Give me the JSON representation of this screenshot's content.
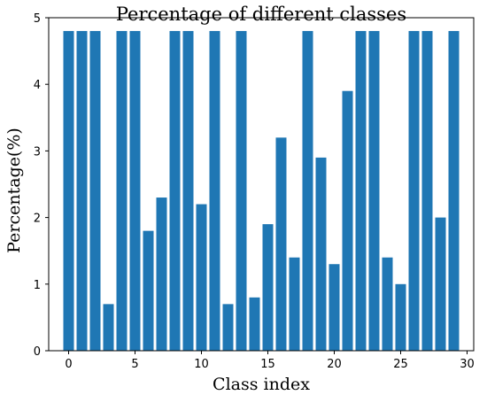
{
  "chart_data": {
    "type": "bar",
    "title": "Percentage of different classes",
    "xlabel": "Class index",
    "ylabel": "Percentage(%)",
    "categories": [
      0,
      1,
      2,
      3,
      4,
      5,
      6,
      7,
      8,
      9,
      10,
      11,
      12,
      13,
      14,
      15,
      16,
      17,
      18,
      19,
      20,
      21,
      22,
      23,
      24,
      25,
      26,
      27,
      28,
      29
    ],
    "values": [
      4.8,
      4.8,
      4.8,
      0.7,
      4.8,
      4.8,
      1.8,
      2.3,
      4.8,
      4.8,
      2.2,
      4.8,
      0.7,
      4.8,
      0.8,
      1.9,
      3.2,
      1.4,
      4.8,
      2.9,
      1.3,
      3.9,
      4.8,
      4.8,
      1.4,
      1.0,
      4.8,
      4.8,
      2.0,
      4.8
    ],
    "xlim": [
      -1.5,
      30.5
    ],
    "ylim": [
      0,
      5
    ],
    "xticks": [
      "0",
      "5",
      "10",
      "15",
      "20",
      "25",
      "30"
    ],
    "yticks": [
      "0",
      "1",
      "2",
      "3",
      "4",
      "5"
    ],
    "bar_color": "#1f77b4",
    "grid": false
  }
}
